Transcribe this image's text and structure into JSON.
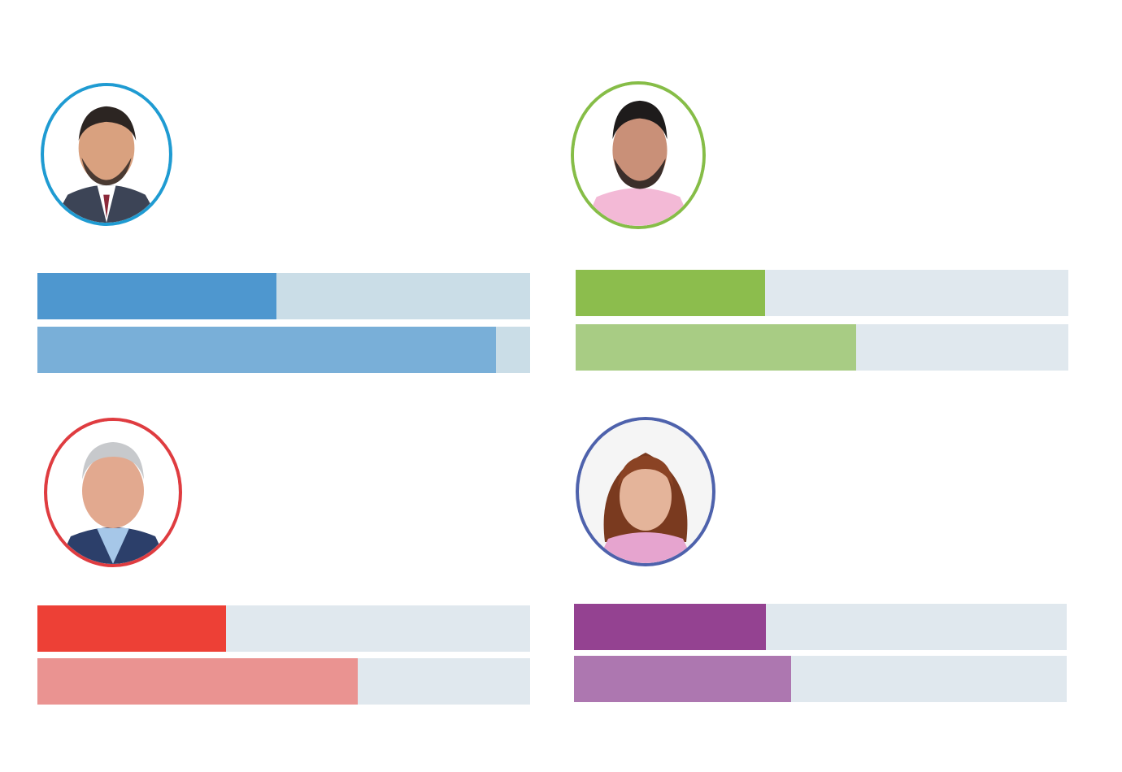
{
  "chart_data": {
    "type": "bar",
    "note_text": "",
    "panels": [
      {
        "ring_color": "#1f9bd2",
        "avatar_icon": "man-suit-portrait-icon",
        "bars": [
          {
            "value": 0.485,
            "fill_color": "#4e97cf",
            "track_color": "#cadde7"
          },
          {
            "value": 0.93,
            "fill_color": "#79afd8",
            "track_color": "#cadde7"
          }
        ]
      },
      {
        "ring_color": "#86bd47",
        "avatar_icon": "man-pink-shirt-portrait-icon",
        "bars": [
          {
            "value": 0.385,
            "fill_color": "#8cbd4d",
            "track_color": "#e0e8ee"
          },
          {
            "value": 0.57,
            "fill_color": "#a8cc84",
            "track_color": "#e0e8ee"
          }
        ]
      },
      {
        "ring_color": "#df3c40",
        "avatar_icon": "man-grey-hair-portrait-icon",
        "bars": [
          {
            "value": 0.383,
            "fill_color": "#ed4036",
            "track_color": "#e0e8ee"
          },
          {
            "value": 0.65,
            "fill_color": "#ea9391",
            "track_color": "#e0e8ee"
          }
        ]
      },
      {
        "ring_color": "#4e62ac",
        "avatar_icon": "woman-portrait-icon",
        "bars": [
          {
            "value": 0.39,
            "fill_color": "#944291",
            "track_color": "#e0e8ee"
          },
          {
            "value": 0.44,
            "fill_color": "#ad77b0",
            "track_color": "#e0e8ee"
          }
        ]
      }
    ]
  }
}
